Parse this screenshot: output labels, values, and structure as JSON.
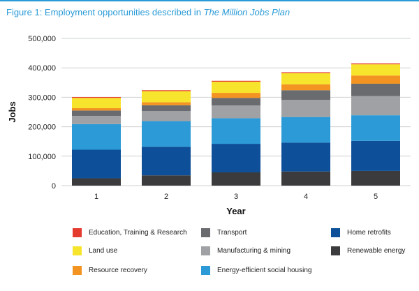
{
  "figure": {
    "title_prefix": "Figure 1: Employment opportunities described in",
    "title_italic": "The Million Jobs Plan"
  },
  "chart_data": {
    "type": "bar",
    "stacked": true,
    "categories": [
      "1",
      "2",
      "3",
      "4",
      "5"
    ],
    "xlabel": "Year",
    "ylabel": "Jobs",
    "ylim": [
      0,
      500000
    ],
    "yticks": [
      "0",
      "100,000",
      "200,000",
      "300,000",
      "400,000",
      "500,000"
    ],
    "grid": true,
    "legend_position": "bottom",
    "series": [
      {
        "name": "Renewable energy",
        "color": "#3b3b3d",
        "values": [
          25000,
          35000,
          45000,
          48000,
          50000
        ]
      },
      {
        "name": "Home retrofits",
        "color": "#0d4f98",
        "values": [
          97000,
          97000,
          97000,
          98000,
          102000
        ]
      },
      {
        "name": "Energy-efficient social housing",
        "color": "#2b9ad6",
        "values": [
          87000,
          87000,
          87000,
          87000,
          87000
        ]
      },
      {
        "name": "Manufacturing & mining",
        "color": "#a0a1a4",
        "values": [
          28000,
          34000,
          43000,
          58000,
          65000
        ]
      },
      {
        "name": "Transport",
        "color": "#6a6b6e",
        "values": [
          18000,
          20000,
          26000,
          33000,
          42000
        ]
      },
      {
        "name": "Resource recovery",
        "color": "#f39422",
        "values": [
          8000,
          10000,
          17000,
          20000,
          28000
        ]
      },
      {
        "name": "Land use",
        "color": "#f7e42c",
        "values": [
          35000,
          38000,
          38000,
          38000,
          38000
        ]
      },
      {
        "name": "Education, Training & Research",
        "color": "#e53a2e",
        "values": [
          3000,
          3000,
          3000,
          3000,
          3000
        ]
      }
    ]
  },
  "legend": {
    "rows": [
      [
        "Education, Training & Research",
        "Transport",
        "Home retrofits"
      ],
      [
        "Land use",
        "Manufacturing & mining",
        "Renewable energy"
      ],
      [
        "Resource recovery",
        "Energy-efficient social housing"
      ]
    ]
  }
}
